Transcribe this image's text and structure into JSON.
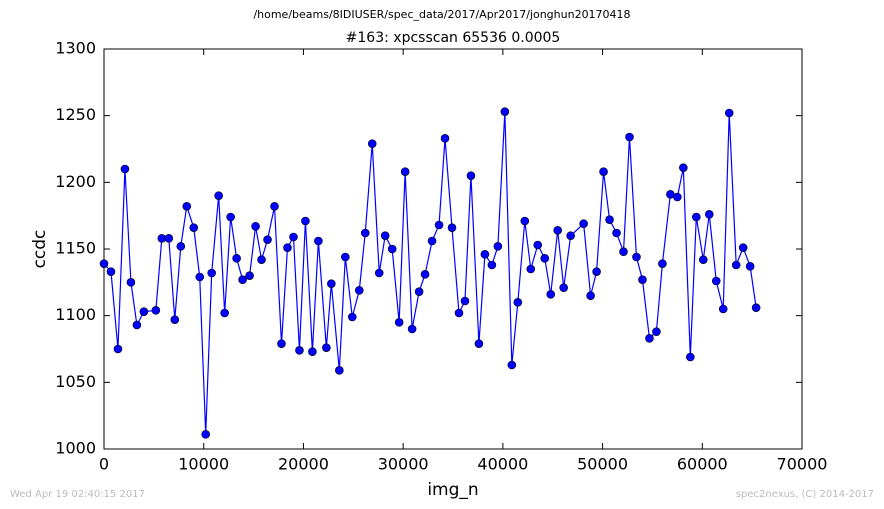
{
  "chart_data": {
    "type": "line",
    "suptitle": "/home/beams/8IDIUSER/spec_data/2017/Apr2017/jonghun20170418",
    "title": "#163: xpcsscan 65536 0.0005",
    "x_label": "img_n",
    "y_label": "ccdc",
    "x": [
      0,
      700,
      1400,
      2100,
      2700,
      3300,
      4000,
      5200,
      5800,
      6500,
      7100,
      7700,
      8300,
      9000,
      9600,
      10200,
      10800,
      11500,
      12100,
      12700,
      13300,
      13900,
      14600,
      15200,
      15800,
      16400,
      17100,
      17800,
      18400,
      19000,
      19600,
      20200,
      20900,
      21500,
      22300,
      22800,
      23600,
      24200,
      24900,
      25600,
      26200,
      26900,
      27600,
      28200,
      28900,
      29600,
      30200,
      30900,
      31600,
      32200,
      32900,
      33600,
      34200,
      34900,
      35600,
      36200,
      36800,
      37600,
      38200,
      38900,
      39500,
      40200,
      40900,
      41500,
      42200,
      42800,
      43500,
      44200,
      44800,
      45500,
      46100,
      46800,
      48100,
      48800,
      49400,
      50100,
      50700,
      51400,
      52100,
      52700,
      53400,
      54000,
      54700,
      55400,
      56000,
      56800,
      57500,
      58100,
      58800,
      59400,
      60100,
      60700,
      61400,
      62100,
      62700,
      63400,
      64100,
      64800,
      65400
    ],
    "series": [
      {
        "name": "ccdc",
        "color": "#0000ff",
        "values": [
          1139,
          1133,
          1075,
          1210,
          1125,
          1093,
          1103,
          1104,
          1158,
          1158,
          1097,
          1152,
          1182,
          1166,
          1129,
          1011,
          1132,
          1190,
          1102,
          1174,
          1143,
          1127,
          1130,
          1167,
          1142,
          1157,
          1182,
          1079,
          1151,
          1159,
          1074,
          1171,
          1073,
          1156,
          1076,
          1124,
          1059,
          1144,
          1099,
          1119,
          1162,
          1229,
          1132,
          1160,
          1150,
          1095,
          1208,
          1090,
          1118,
          1131,
          1156,
          1168,
          1233,
          1166,
          1102,
          1111,
          1205,
          1079,
          1146,
          1138,
          1152,
          1253,
          1063,
          1110,
          1171,
          1135,
          1153,
          1143,
          1116,
          1164,
          1121,
          1160,
          1169,
          1115,
          1133,
          1208,
          1172,
          1162,
          1148,
          1234,
          1144,
          1127,
          1083,
          1088,
          1139,
          1191,
          1189,
          1211,
          1069,
          1174,
          1142,
          1176,
          1126,
          1105,
          1252,
          1138,
          1151,
          1137,
          1106
        ]
      }
    ],
    "xlim": [
      0,
      70000
    ],
    "xticks": [
      0,
      10000,
      20000,
      30000,
      40000,
      50000,
      60000,
      70000
    ],
    "ylim": [
      1000,
      1300
    ],
    "yticks": [
      1000,
      1050,
      1100,
      1150,
      1200,
      1250,
      1300
    ]
  },
  "footer": {
    "left": "Wed Apr 19 02:40:15 2017",
    "right": "spec2nexus, (C) 2014-2017"
  }
}
